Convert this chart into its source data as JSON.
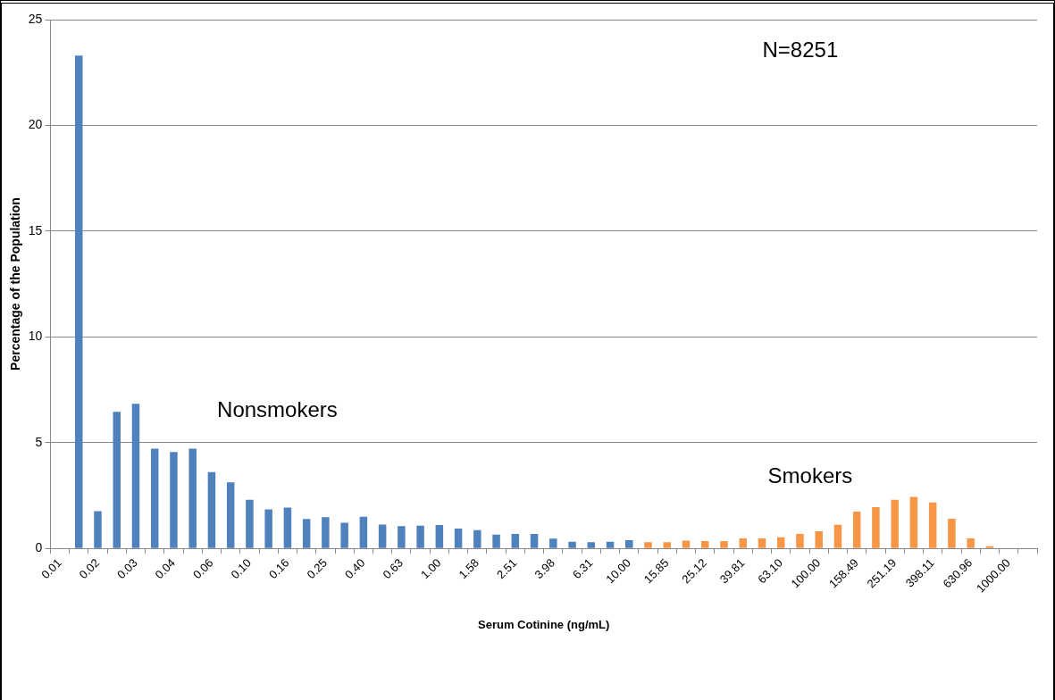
{
  "chart_data": {
    "type": "bar",
    "xlabel": "Serum Cotinine (ng/mL)",
    "ylabel": "Percentage of the Population",
    "categories": [
      "0.01",
      null,
      "0.02",
      null,
      "0.03",
      null,
      "0.04",
      null,
      "0.06",
      null,
      "0.10",
      null,
      "0.16",
      null,
      "0.25",
      null,
      "0.40",
      null,
      "0.63",
      null,
      "1.00",
      null,
      "1.58",
      null,
      "2.51",
      null,
      "3.98",
      null,
      "6.31",
      null,
      "10.00",
      null,
      "15.85",
      null,
      "25.12",
      null,
      "39.81",
      null,
      "63.10",
      null,
      "100.00",
      null,
      "158.49",
      null,
      "251.19",
      null,
      "398.11",
      null,
      "630.96",
      null,
      "1000.00",
      null
    ],
    "series": [
      {
        "name": "Nonsmokers",
        "color": "#4f81bd",
        "values": [
          null,
          23.3,
          1.76,
          6.46,
          6.84,
          4.71,
          4.56,
          4.71,
          3.61,
          3.12,
          2.3,
          1.84,
          1.93,
          1.39,
          1.47,
          1.21,
          1.49,
          1.13,
          1.05,
          1.07,
          1.1,
          0.94,
          0.86,
          0.65,
          0.68,
          0.68,
          0.46,
          0.31,
          0.29,
          0.31,
          0.39,
          null,
          null,
          null,
          null,
          null,
          null,
          null,
          null,
          null,
          null,
          null,
          null,
          null,
          null,
          null,
          null,
          null,
          null,
          null,
          null,
          null
        ]
      },
      {
        "name": "Smokers",
        "color": "#f79646",
        "values": [
          null,
          null,
          null,
          null,
          null,
          null,
          null,
          null,
          null,
          null,
          null,
          null,
          null,
          null,
          null,
          null,
          null,
          null,
          null,
          null,
          null,
          null,
          null,
          null,
          null,
          null,
          null,
          null,
          null,
          null,
          null,
          0.29,
          0.29,
          0.37,
          0.34,
          0.34,
          0.47,
          0.47,
          0.52,
          0.68,
          0.81,
          1.11,
          1.74,
          1.95,
          2.3,
          2.43,
          2.17,
          1.4,
          0.47,
          0.1,
          null,
          null
        ]
      }
    ],
    "ylim": [
      0,
      25
    ],
    "yticks": [
      0,
      5,
      10,
      15,
      20,
      25
    ],
    "grid": "y",
    "annotations": [
      "N=8251"
    ]
  }
}
